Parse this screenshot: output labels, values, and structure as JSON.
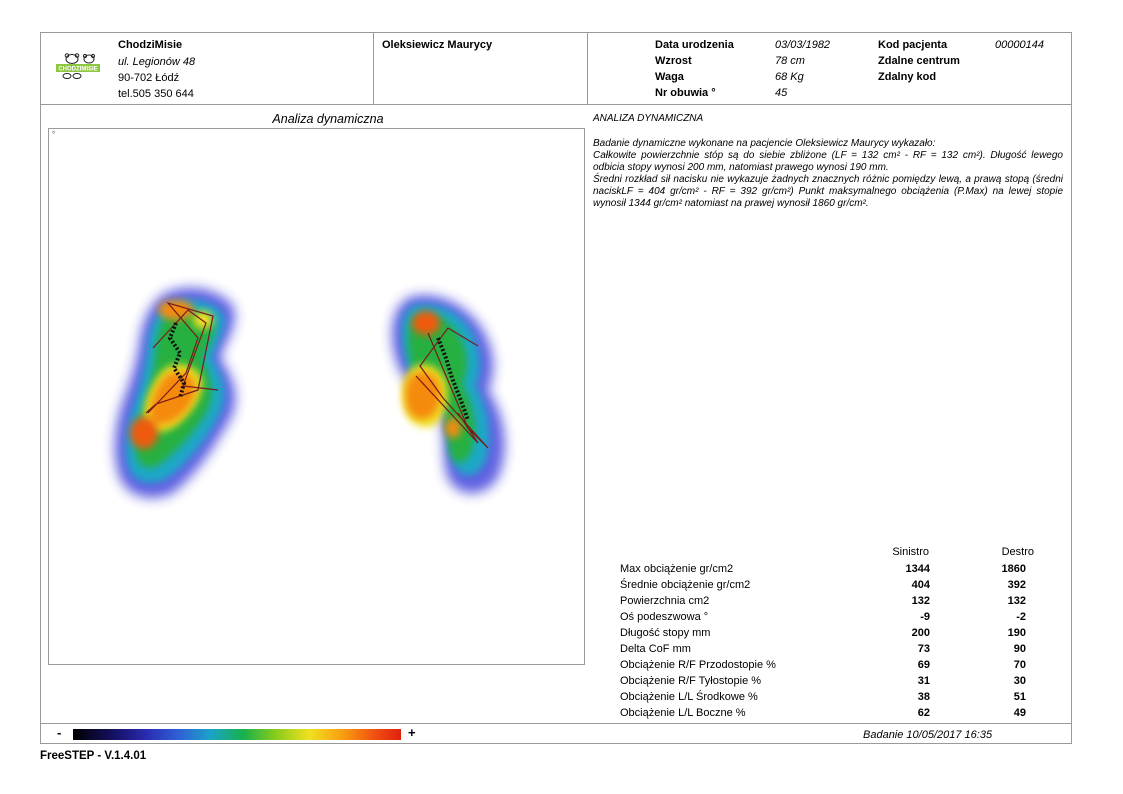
{
  "clinic": {
    "name": "ChodziMisie",
    "address": "ul. Legionów 48",
    "city": "90-702 Łódź",
    "phone": "tel.505 350 644",
    "logo_text": "CHODZIMISIE"
  },
  "patient": {
    "name": "Oleksiewicz Maurycy",
    "fields": [
      {
        "label": "Data urodzenia",
        "value": "03/03/1982"
      },
      {
        "label": "Wzrost",
        "value": "78 cm"
      },
      {
        "label": "Waga",
        "value": "68 Kg"
      },
      {
        "label": "Nr obuwia °",
        "value": "45"
      }
    ],
    "codes": [
      {
        "label": "Kod pacjenta",
        "value": "00000144"
      },
      {
        "label": "Zdalne centrum",
        "value": ""
      },
      {
        "label": "Zdalny kod",
        "value": ""
      }
    ]
  },
  "section_title": "Analiza dynamiczna",
  "plot_mark": "°",
  "report": {
    "title": "ANALIZA DYNAMICZNA",
    "lines": [
      "Badanie dynamiczne wykonane na pacjencie Oleksiewicz Maurycy wykazało:",
      "Całkowite powierzchnie stóp są do siebie zbliżone (LF = 132 cm² - RF = 132 cm²). Długość lewego odbicia stopy wynosi 200 mm, natomiast prawego wynosi 190 mm.",
      "Średni rozkład sił nacisku nie wykazuje żadnych znacznych różnic pomiędzy lewą, a prawą stopą (średni naciskLF = 404 gr/cm² - RF = 392 gr/cm²) Punkt maksymalnego obciążenia (P.Max) na lewej stopie wynosił 1344 gr/cm² natomiast na prawej wynosił 1860 gr/cm²."
    ]
  },
  "stats": {
    "headers": [
      "Sinistro",
      "Destro"
    ],
    "rows": [
      {
        "label": "Max obciążenie gr/cm2",
        "left": "1344",
        "right": "1860"
      },
      {
        "label": "Średnie obciążenie gr/cm2",
        "left": "404",
        "right": "392"
      },
      {
        "label": "Powierzchnia cm2",
        "left": "132",
        "right": "132"
      },
      {
        "label": "Oś podeszwowa °",
        "left": "-9",
        "right": "-2"
      },
      {
        "label": "Długość stopy mm",
        "left": "200",
        "right": "190"
      },
      {
        "label": "Delta CoF mm",
        "left": "73",
        "right": "90"
      },
      {
        "label": "Obciążenie R/F Przodostopie %",
        "left": "69",
        "right": "70"
      },
      {
        "label": "Obciążenie R/F Tyłostopie %",
        "left": "31",
        "right": "30"
      },
      {
        "label": "Obciążenie L/L Środkowe %",
        "left": "38",
        "right": "51"
      },
      {
        "label": "Obciążenie L/L Boczne %",
        "left": "62",
        "right": "49"
      }
    ]
  },
  "scale": {
    "minus": "-",
    "plus": "+"
  },
  "exam_date": "Badanie 10/05/2017 16:35",
  "footer": "FreeSTEP - V.1.4.01"
}
